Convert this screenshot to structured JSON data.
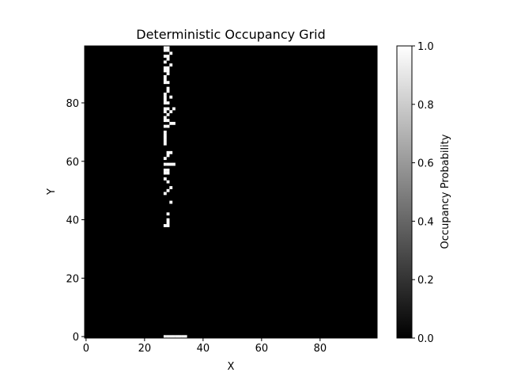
{
  "chart_data": {
    "type": "heatmap",
    "title": "Deterministic Occupancy Grid",
    "xlabel": "X",
    "ylabel": "Y",
    "xlim": [
      -0.5,
      99.5
    ],
    "ylim": [
      -0.5,
      99.5
    ],
    "xticks": [
      0,
      20,
      40,
      60,
      80
    ],
    "yticks": [
      0,
      20,
      40,
      60,
      80
    ],
    "grid": false,
    "colormap": "gray",
    "colorbar": {
      "label": "Occupancy Probability",
      "range": [
        0.0,
        1.0
      ],
      "ticks": [
        "0.0",
        "0.2",
        "0.4",
        "0.6",
        "0.8",
        "1.0"
      ]
    },
    "background_value": 0,
    "occupied_cells": [
      {
        "x": 27,
        "y": 0
      },
      {
        "x": 28,
        "y": 0
      },
      {
        "x": 29,
        "y": 0
      },
      {
        "x": 30,
        "y": 0
      },
      {
        "x": 31,
        "y": 0
      },
      {
        "x": 32,
        "y": 0
      },
      {
        "x": 33,
        "y": 0
      },
      {
        "x": 34,
        "y": 0
      },
      {
        "x": 27,
        "y": 38
      },
      {
        "x": 28,
        "y": 38
      },
      {
        "x": 28,
        "y": 39
      },
      {
        "x": 28,
        "y": 40
      },
      {
        "x": 28,
        "y": 42
      },
      {
        "x": 29,
        "y": 46
      },
      {
        "x": 27,
        "y": 49
      },
      {
        "x": 28,
        "y": 50
      },
      {
        "x": 29,
        "y": 51
      },
      {
        "x": 28,
        "y": 53
      },
      {
        "x": 27,
        "y": 54
      },
      {
        "x": 27,
        "y": 56
      },
      {
        "x": 28,
        "y": 56
      },
      {
        "x": 27,
        "y": 57
      },
      {
        "x": 28,
        "y": 57
      },
      {
        "x": 27,
        "y": 59
      },
      {
        "x": 28,
        "y": 59
      },
      {
        "x": 29,
        "y": 59
      },
      {
        "x": 30,
        "y": 59
      },
      {
        "x": 27,
        "y": 61
      },
      {
        "x": 28,
        "y": 62
      },
      {
        "x": 28,
        "y": 63
      },
      {
        "x": 29,
        "y": 63
      },
      {
        "x": 27,
        "y": 66
      },
      {
        "x": 27,
        "y": 67
      },
      {
        "x": 27,
        "y": 68
      },
      {
        "x": 27,
        "y": 69
      },
      {
        "x": 27,
        "y": 70
      },
      {
        "x": 27,
        "y": 72
      },
      {
        "x": 28,
        "y": 72
      },
      {
        "x": 29,
        "y": 73
      },
      {
        "x": 30,
        "y": 73
      },
      {
        "x": 27,
        "y": 74
      },
      {
        "x": 28,
        "y": 74
      },
      {
        "x": 27,
        "y": 75
      },
      {
        "x": 28,
        "y": 76
      },
      {
        "x": 27,
        "y": 77
      },
      {
        "x": 27,
        "y": 78
      },
      {
        "x": 28,
        "y": 78
      },
      {
        "x": 29,
        "y": 77
      },
      {
        "x": 30,
        "y": 78
      },
      {
        "x": 27,
        "y": 80
      },
      {
        "x": 28,
        "y": 80
      },
      {
        "x": 27,
        "y": 81
      },
      {
        "x": 27,
        "y": 82
      },
      {
        "x": 29,
        "y": 82
      },
      {
        "x": 27,
        "y": 83
      },
      {
        "x": 28,
        "y": 84
      },
      {
        "x": 28,
        "y": 85
      },
      {
        "x": 27,
        "y": 87
      },
      {
        "x": 28,
        "y": 87
      },
      {
        "x": 27,
        "y": 88
      },
      {
        "x": 27,
        "y": 89
      },
      {
        "x": 28,
        "y": 90
      },
      {
        "x": 27,
        "y": 91
      },
      {
        "x": 28,
        "y": 91
      },
      {
        "x": 27,
        "y": 92
      },
      {
        "x": 28,
        "y": 92
      },
      {
        "x": 29,
        "y": 93
      },
      {
        "x": 27,
        "y": 94
      },
      {
        "x": 28,
        "y": 95
      },
      {
        "x": 27,
        "y": 96
      },
      {
        "x": 28,
        "y": 96
      },
      {
        "x": 29,
        "y": 97
      },
      {
        "x": 27,
        "y": 98
      },
      {
        "x": 28,
        "y": 98
      },
      {
        "x": 27,
        "y": 99
      },
      {
        "x": 28,
        "y": 99
      }
    ]
  }
}
